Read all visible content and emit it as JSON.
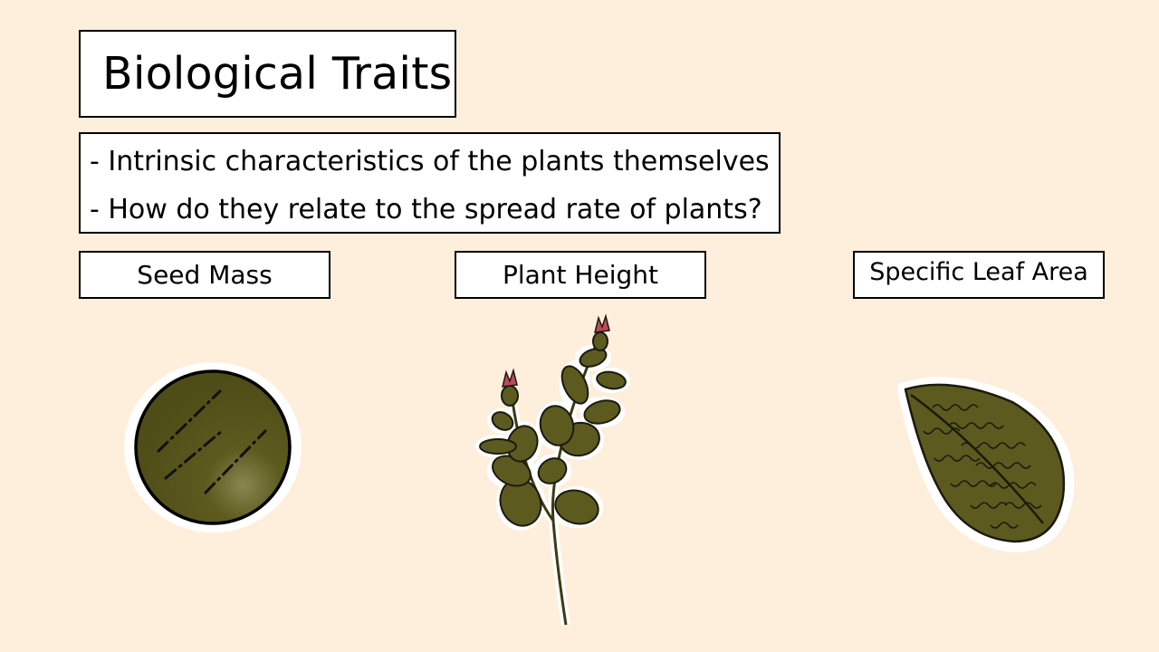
{
  "slide": {
    "title": "Biological Traits",
    "bullets": [
      "- Intrinsic characteristics of the plants themselves",
      "- How do they relate to the spread rate of plants?"
    ],
    "traits": [
      {
        "label": "Seed Mass",
        "icon": "seed-icon"
      },
      {
        "label": "Plant Height",
        "icon": "plant-icon"
      },
      {
        "label": "Specific Leaf Area",
        "icon": "leaf-icon"
      }
    ]
  },
  "colors": {
    "background": "#fdefdc",
    "illustration_green": "#5c5a1e",
    "flower_red": "#c0485a",
    "outline": "#1a1a10"
  }
}
